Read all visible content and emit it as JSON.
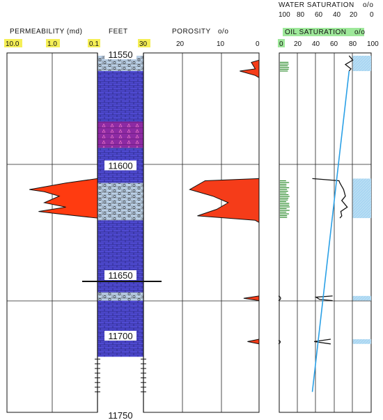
{
  "headers": {
    "permeability": "PERMEABILITY  (md)",
    "feet": "FEET",
    "porosity": "POROSITY",
    "porosity_unit": "o/o",
    "water_saturation": "WATER  SATURATION",
    "water_saturation_unit": "o/o",
    "oil_saturation": "OIL  SATURATION",
    "oil_saturation_unit": "o/o"
  },
  "scales": {
    "permeability": [
      "10.0",
      "1.0",
      "0.1"
    ],
    "feet_scale": "30",
    "porosity": [
      "20",
      "10",
      "0"
    ],
    "water_saturation": [
      "100",
      "80",
      "60",
      "40",
      "20",
      "0"
    ],
    "oil_saturation": [
      "0",
      "20",
      "40",
      "60",
      "80",
      "100"
    ]
  },
  "depth_labels": [
    {
      "depth": 11550,
      "text": "11550"
    },
    {
      "depth": 11600,
      "text": "11600"
    },
    {
      "depth": 11650,
      "text": "11650"
    },
    {
      "depth": 11700,
      "text": "11700"
    },
    {
      "depth": 11750,
      "text": "11750"
    }
  ],
  "colors": {
    "limestone": "#4f4ad1",
    "oolitic_limestone": "#b9cfe6",
    "anhydrite": "#8c2aa3",
    "permeability_fill": "#ff3b10",
    "porosity_fill": "#f53c19",
    "water_fill": "#a9d6f2",
    "trend_line": "#2aa0e6",
    "green_marks": "#2d8c2d",
    "highlight_yellow": "#f5ef56",
    "highlight_green": "#9ee89a"
  },
  "lithology": [
    {
      "type": "oolitic_limestone",
      "from": 11550,
      "to": 11557
    },
    {
      "type": "limestone",
      "from": 11557,
      "to": 11580
    },
    {
      "type": "anhydrite",
      "from": 11580,
      "to": 11592
    },
    {
      "type": "limestone",
      "from": 11592,
      "to": 11608
    },
    {
      "type": "oolitic_limestone",
      "from": 11608,
      "to": 11625
    },
    {
      "type": "limestone",
      "from": 11625,
      "to": 11663
    },
    {
      "type": "oolitic_limestone",
      "from": 11663,
      "to": 11670
    },
    {
      "type": "limestone",
      "from": 11670,
      "to": 11718
    }
  ],
  "chart_data": [
    {
      "type": "line",
      "name": "permeability",
      "scale": "log",
      "xlim": [
        10.0,
        0.1
      ],
      "points": [
        {
          "depth": 11606,
          "value": 0.1
        },
        {
          "depth": 11608,
          "value": 0.5
        },
        {
          "depth": 11611,
          "value": 3.2
        },
        {
          "depth": 11612,
          "value": 1.5
        },
        {
          "depth": 11614,
          "value": 0.7
        },
        {
          "depth": 11617,
          "value": 1.5
        },
        {
          "depth": 11619,
          "value": 0.5
        },
        {
          "depth": 11621,
          "value": 2.0
        },
        {
          "depth": 11622,
          "value": 0.8
        },
        {
          "depth": 11624,
          "value": 0.1
        }
      ]
    },
    {
      "type": "area",
      "name": "porosity",
      "xlim": [
        30,
        0
      ],
      "points": [
        {
          "depth": 11552,
          "value": 0
        },
        {
          "depth": 11553,
          "value": 2
        },
        {
          "depth": 11556,
          "value": 1
        },
        {
          "depth": 11557,
          "value": 5
        },
        {
          "depth": 11559,
          "value": 1
        },
        {
          "depth": 11560,
          "value": 0
        },
        {
          "depth": 11606,
          "value": 0
        },
        {
          "depth": 11607,
          "value": 14
        },
        {
          "depth": 11611,
          "value": 18
        },
        {
          "depth": 11614,
          "value": 12
        },
        {
          "depth": 11617,
          "value": 8
        },
        {
          "depth": 11620,
          "value": 11
        },
        {
          "depth": 11623,
          "value": 16
        },
        {
          "depth": 11625,
          "value": 1
        },
        {
          "depth": 11626,
          "value": 0
        },
        {
          "depth": 11666,
          "value": 0
        },
        {
          "depth": 11668,
          "value": 4
        },
        {
          "depth": 11670,
          "value": 0
        },
        {
          "depth": 11703,
          "value": 0
        },
        {
          "depth": 11705,
          "value": 3
        },
        {
          "depth": 11707,
          "value": 0
        }
      ]
    },
    {
      "type": "line",
      "name": "oil saturation",
      "xlim": [
        0,
        100
      ],
      "points": [
        {
          "depth": 11550,
          "value": 76
        },
        {
          "depth": 11552,
          "value": 80
        },
        {
          "depth": 11554,
          "value": 72
        },
        {
          "depth": 11556,
          "value": 78
        },
        {
          "depth": 11557,
          "value": 76
        },
        {
          "depth": 11606,
          "value": 36
        },
        {
          "depth": 11607,
          "value": 65
        },
        {
          "depth": 11608,
          "value": 66
        },
        {
          "depth": 11611,
          "value": 70
        },
        {
          "depth": 11614,
          "value": 72
        },
        {
          "depth": 11616,
          "value": 68
        },
        {
          "depth": 11619,
          "value": 74
        },
        {
          "depth": 11621,
          "value": 67
        },
        {
          "depth": 11623,
          "value": 68
        },
        {
          "depth": 11624,
          "value": 66
        },
        {
          "depth": 11666,
          "value": 58
        },
        {
          "depth": 11667,
          "value": 40
        },
        {
          "depth": 11669,
          "value": 44
        },
        {
          "depth": 11670,
          "value": 58
        },
        {
          "depth": 11703,
          "value": 56
        },
        {
          "depth": 11705,
          "value": 38
        },
        {
          "depth": 11707,
          "value": 56
        }
      ]
    },
    {
      "type": "line",
      "name": "trend",
      "xlim": [
        0,
        100
      ],
      "points": [
        {
          "depth": 11557,
          "value": 76
        },
        {
          "depth": 11748,
          "value": 36
        }
      ]
    }
  ]
}
